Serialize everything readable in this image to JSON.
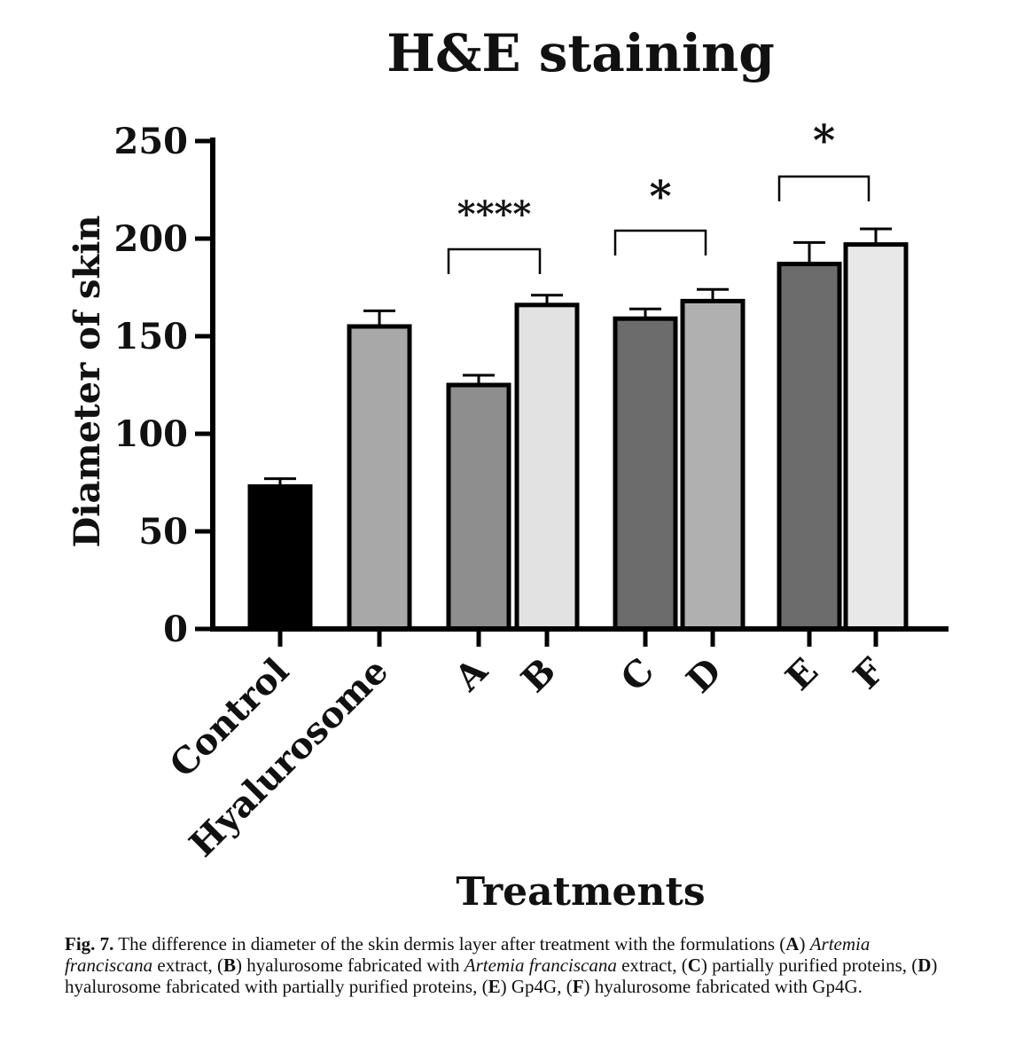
{
  "chart_data": {
    "type": "bar",
    "title": "H&E staining",
    "xlabel": "Treatments",
    "ylabel": "Diameter of skin",
    "ylim": [
      0,
      250
    ],
    "yticks": [
      0,
      50,
      100,
      150,
      200,
      250
    ],
    "categories": [
      "Control",
      "Hyalurosome",
      "A",
      "B",
      "C",
      "D",
      "E",
      "F"
    ],
    "values": [
      73,
      155,
      125,
      166,
      159,
      168,
      187,
      197
    ],
    "errors": [
      4,
      8,
      5,
      5,
      5,
      6,
      11,
      8
    ],
    "bar_colors": [
      "#000000",
      "#a8a8a8",
      "#8e8e8e",
      "#e2e2e2",
      "#6c6c6c",
      "#b0b0b0",
      "#6c6c6c",
      "#e8e8e8"
    ],
    "significance": [
      {
        "pair": [
          "A",
          "B"
        ],
        "label": "****"
      },
      {
        "pair": [
          "C",
          "D"
        ],
        "label": "*"
      },
      {
        "pair": [
          "E",
          "F"
        ],
        "label": "*"
      }
    ],
    "grid": false
  },
  "caption": {
    "fig_label": "Fig. 7.",
    "intro": " The difference in diameter of the skin dermis layer after treatment with the formulations (",
    "a_key": "A",
    "a_text": ") ",
    "a_italic": "Artemia franciscana",
    "a_rest": " extract, (",
    "b_key": "B",
    "b_text": ") hyalurosome fabricated with ",
    "b_italic": "Artemia franciscana",
    "b_rest": " extract, (",
    "c_key": "C",
    "c_text": ") partially purified proteins, (",
    "d_key": "D",
    "d_text": ") hyalurosome fabricated with partially purified proteins, (",
    "e_key": "E",
    "e_text": ") Gp4G, (",
    "f_key": "F",
    "f_text": ") hyalurosome fabricated with Gp4G."
  }
}
